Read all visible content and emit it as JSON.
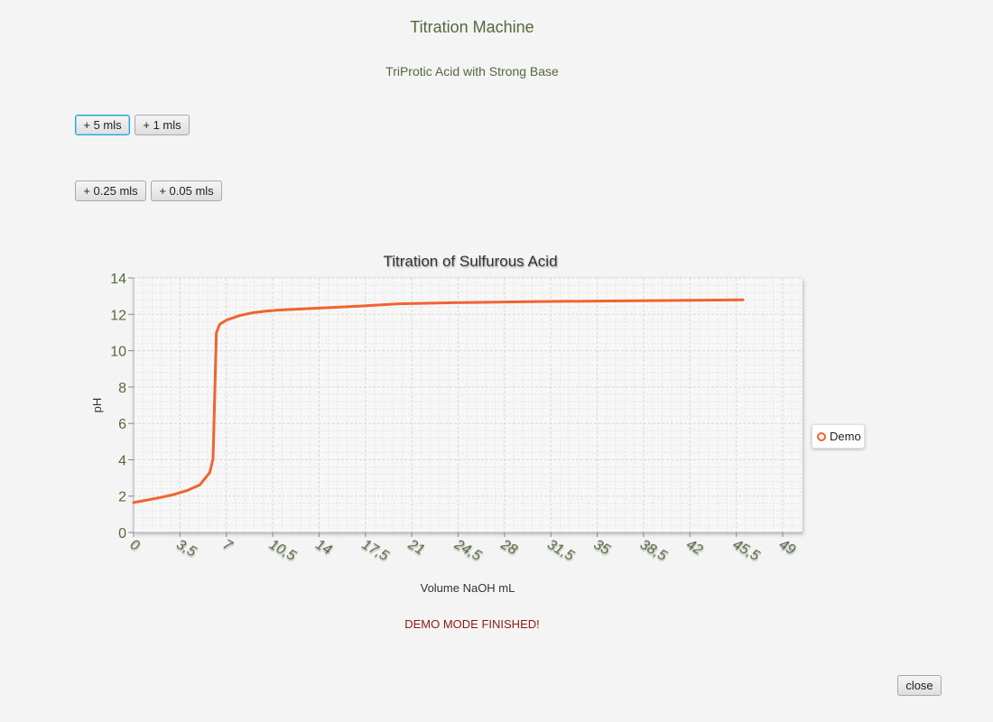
{
  "app": {
    "title": "Titration Machine",
    "subtitle": "TriProtic Acid with Strong Base"
  },
  "controls": {
    "add_5_label": "+ 5 mls",
    "add_1_label": "+ 1 mls",
    "add_025_label": "+ 0.25 mls",
    "add_005_label": "+ 0.05 mls",
    "close_label": "close"
  },
  "status": {
    "message": "DEMO MODE FINISHED!",
    "color": "#8b1a1a"
  },
  "theme": {
    "title_color": "#54683a",
    "series_color": "#f06430",
    "focus_color": "#2aa4d8"
  },
  "chart_data": {
    "type": "line",
    "title": "Titration of Sulfurous Acid",
    "xlabel": "Volume NaOH mL",
    "ylabel": "pH",
    "xlim": [
      0,
      50.5
    ],
    "ylim": [
      0,
      14
    ],
    "x_ticks": [
      "0",
      "3,5",
      "7",
      "10,5",
      "14",
      "17,5",
      "21",
      "24,5",
      "28",
      "31,5",
      "35",
      "38,5",
      "42",
      "45,5",
      "49"
    ],
    "y_ticks": [
      "0",
      "2",
      "4",
      "6",
      "8",
      "10",
      "12",
      "14"
    ],
    "grid": true,
    "legend_position": "right",
    "series": [
      {
        "name": "Demo",
        "x": [
          0,
          1,
          2,
          3,
          4,
          5,
          5.75,
          6,
          6.25,
          6.5,
          7,
          8,
          9,
          10,
          11,
          14,
          17,
          20,
          25,
          30,
          35,
          40,
          46
        ],
        "y": [
          1.65,
          1.78,
          1.92,
          2.08,
          2.3,
          2.62,
          3.3,
          4.05,
          11.0,
          11.45,
          11.68,
          11.93,
          12.09,
          12.18,
          12.24,
          12.34,
          12.45,
          12.58,
          12.65,
          12.7,
          12.73,
          12.76,
          12.8
        ]
      }
    ]
  }
}
